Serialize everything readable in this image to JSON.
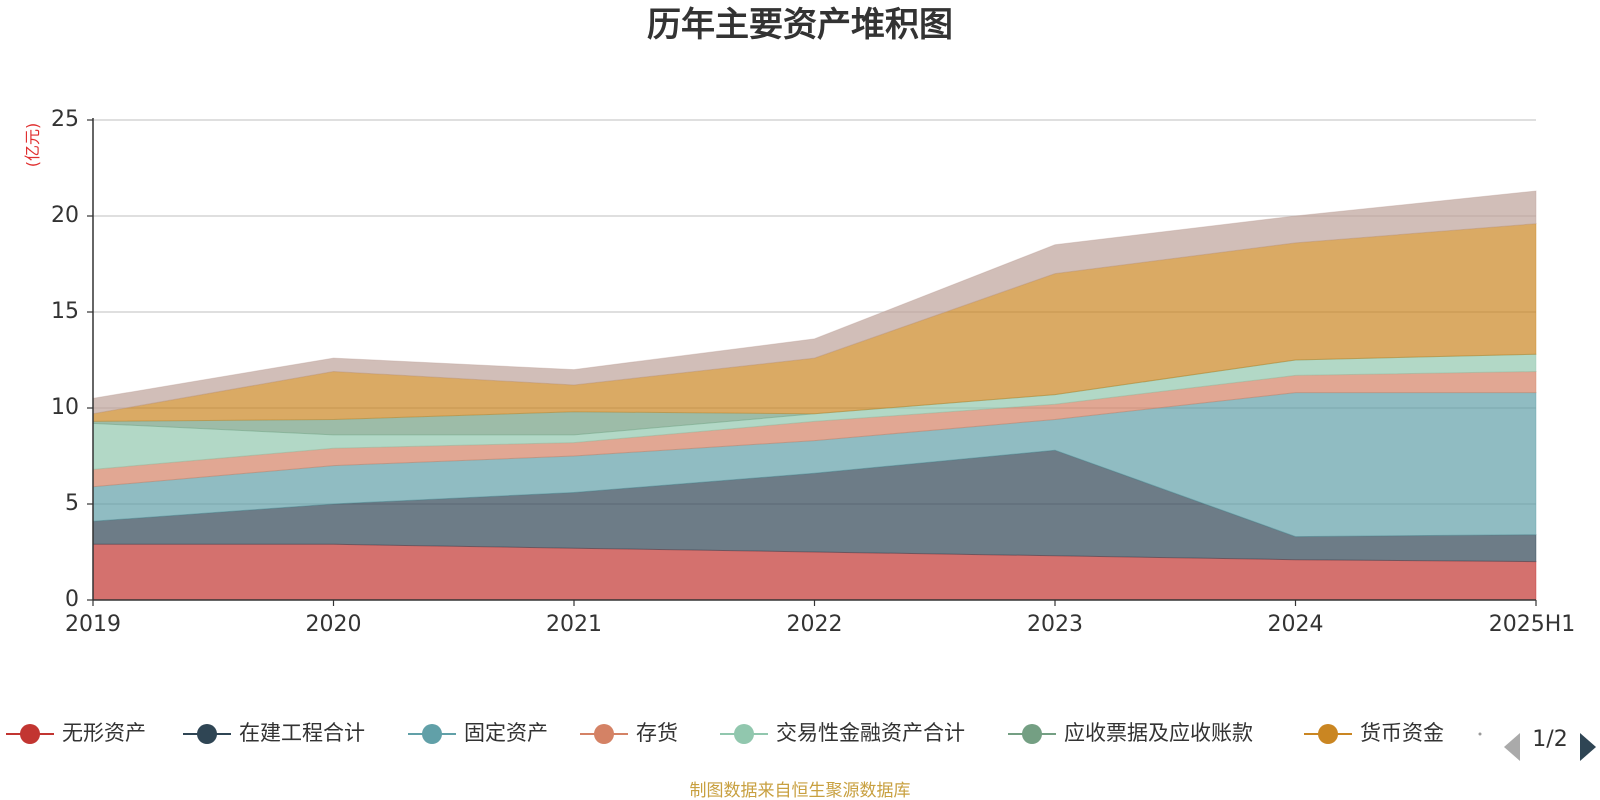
{
  "chart_data": {
    "type": "area",
    "stacked": true,
    "title": "历年主要资产堆积图",
    "unit_label": "(亿元)",
    "categories": [
      "2019",
      "2020",
      "2021",
      "2022",
      "2023",
      "2024",
      "2025H1"
    ],
    "ylim": [
      0,
      25
    ],
    "yticks": [
      "0",
      "5",
      "10",
      "15",
      "20",
      "25"
    ],
    "grid": true,
    "series": [
      {
        "name": "无形资产",
        "color": "#c23531",
        "values": [
          2.9,
          2.9,
          2.7,
          2.5,
          2.3,
          2.1,
          2.0
        ]
      },
      {
        "name": "在建工程合计",
        "color": "#2f4554",
        "values": [
          1.2,
          2.1,
          2.9,
          4.1,
          5.5,
          1.2,
          1.4
        ]
      },
      {
        "name": "固定资产",
        "color": "#61a0a8",
        "values": [
          1.8,
          2.0,
          1.9,
          1.7,
          1.6,
          7.5,
          7.4
        ]
      },
      {
        "name": "存货",
        "color": "#d48265",
        "values": [
          0.9,
          0.9,
          0.7,
          1.0,
          0.8,
          0.9,
          1.1
        ]
      },
      {
        "name": "交易性金融资产合计",
        "color": "#91c7ae",
        "values": [
          2.4,
          0.7,
          0.4,
          0.4,
          0.5,
          0.8,
          0.9
        ]
      },
      {
        "name": "应收票据及应收账款",
        "color": "#749f83",
        "values": [
          0.1,
          0.8,
          1.2,
          0.0,
          0.0,
          0.0,
          0.0
        ]
      },
      {
        "name": "货币资金",
        "color": "#ca8622",
        "values": [
          0.4,
          2.5,
          1.4,
          2.9,
          6.3,
          6.1,
          6.8
        ]
      },
      {
        "name": "",
        "color": "#bda29a",
        "values": [
          0.8,
          0.7,
          0.8,
          1.0,
          1.5,
          1.4,
          1.7
        ]
      }
    ],
    "legend_position": "bottom",
    "legend_pager": "1/2"
  },
  "source_note": "制图数据来自恒生聚源数据库"
}
